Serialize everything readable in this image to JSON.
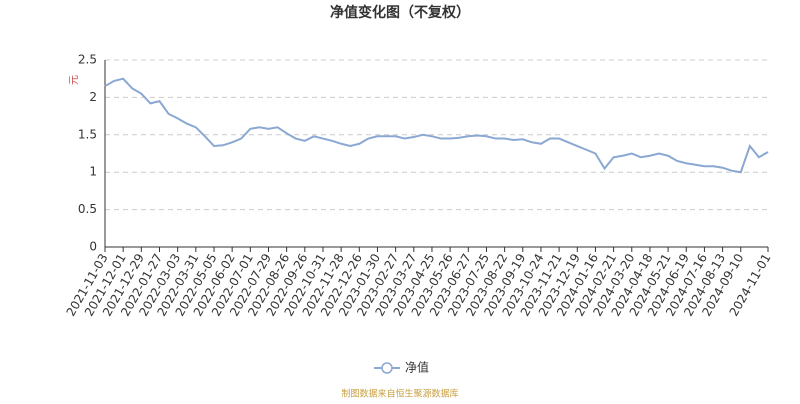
{
  "chart_data": {
    "type": "line",
    "title": "净值变化图（不复权）",
    "y_label": "元",
    "source": "制图数据来自恒生聚源数据库",
    "categories": [
      "2021-11-03",
      null,
      "2021-12-01",
      null,
      "2021-12-29",
      null,
      "2022-01-27",
      null,
      "2022-03-03",
      null,
      "2022-03-31",
      null,
      "2022-05-05",
      null,
      "2022-06-02",
      null,
      "2022-07-01",
      null,
      "2022-07-29",
      null,
      "2022-08-26",
      null,
      "2022-09-26",
      null,
      "2022-10-31",
      null,
      "2022-11-28",
      null,
      "2022-12-26",
      null,
      "2023-01-30",
      null,
      "2023-02-27",
      null,
      "2023-03-27",
      null,
      "2023-04-25",
      null,
      "2023-05-26",
      null,
      "2023-06-27",
      null,
      "2023-07-25",
      null,
      "2023-08-22",
      null,
      "2023-09-19",
      null,
      "2023-10-24",
      null,
      "2023-11-21",
      null,
      "2023-12-19",
      null,
      "2024-01-16",
      null,
      "2024-02-21",
      null,
      "2024-03-20",
      null,
      "2024-04-18",
      null,
      "2024-05-21",
      null,
      "2024-06-19",
      null,
      "2024-07-16",
      null,
      "2024-08-13",
      null,
      "2024-09-10",
      null,
      null,
      "2024-11-01"
    ],
    "series": [
      {
        "name": "净值",
        "color": "#8aa8d2",
        "values": [
          2.15,
          2.22,
          2.25,
          2.12,
          2.05,
          1.92,
          1.95,
          1.78,
          1.72,
          1.65,
          1.6,
          1.48,
          1.35,
          1.36,
          1.4,
          1.45,
          1.58,
          1.6,
          1.58,
          1.6,
          1.52,
          1.45,
          1.42,
          1.48,
          1.45,
          1.42,
          1.38,
          1.35,
          1.38,
          1.45,
          1.48,
          1.48,
          1.48,
          1.45,
          1.47,
          1.5,
          1.48,
          1.45,
          1.45,
          1.46,
          1.48,
          1.49,
          1.48,
          1.45,
          1.45,
          1.43,
          1.44,
          1.4,
          1.38,
          1.45,
          1.45,
          1.4,
          1.35,
          1.3,
          1.25,
          1.05,
          1.2,
          1.22,
          1.25,
          1.2,
          1.22,
          1.25,
          1.22,
          1.15,
          1.12,
          1.1,
          1.08,
          1.08,
          1.06,
          1.02,
          1.0,
          1.35,
          1.2,
          1.27
        ]
      }
    ],
    "ylim": [
      0,
      2.5
    ],
    "yticks": [
      0,
      0.5,
      1,
      1.5,
      2,
      2.5
    ],
    "grid": true,
    "legend": "bottom"
  }
}
